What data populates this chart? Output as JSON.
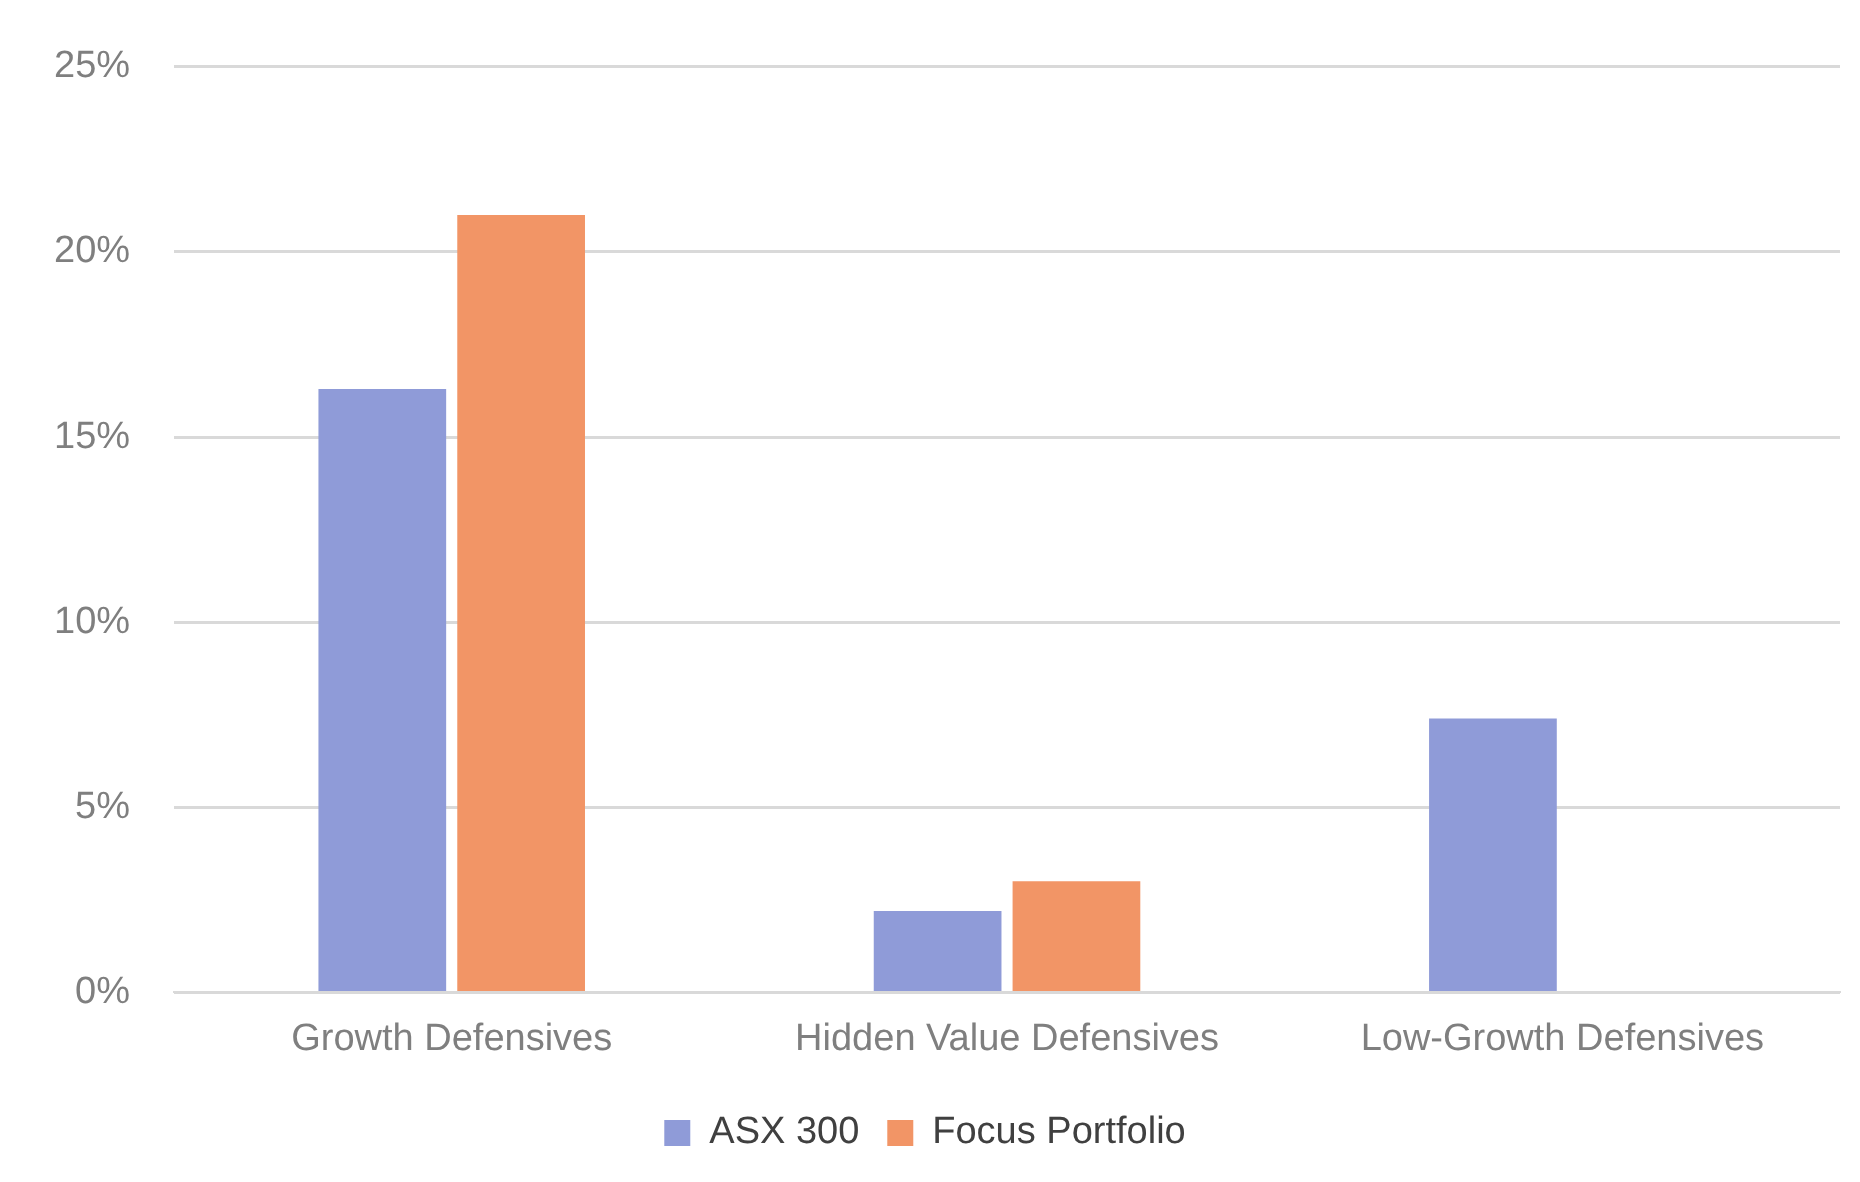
{
  "chart_data": {
    "type": "bar",
    "categories": [
      "Growth Defensives",
      "Hidden Value Defensives",
      "Low-Growth Defensives"
    ],
    "series": [
      {
        "name": "ASX 300",
        "color": "#8f9bd8",
        "values": [
          16.3,
          2.2,
          7.4
        ]
      },
      {
        "name": "Focus Portfolio",
        "color": "#f29566",
        "values": [
          21.0,
          3.0,
          0
        ]
      }
    ],
    "ylim": [
      0,
      25
    ],
    "yticks": [
      {
        "value": 0,
        "label": "0%"
      },
      {
        "value": 5,
        "label": "5%"
      },
      {
        "value": 10,
        "label": "10%"
      },
      {
        "value": 15,
        "label": "15%"
      },
      {
        "value": 20,
        "label": "20%"
      },
      {
        "value": 25,
        "label": "25%"
      }
    ],
    "grid": "y",
    "legend": "bottom"
  }
}
